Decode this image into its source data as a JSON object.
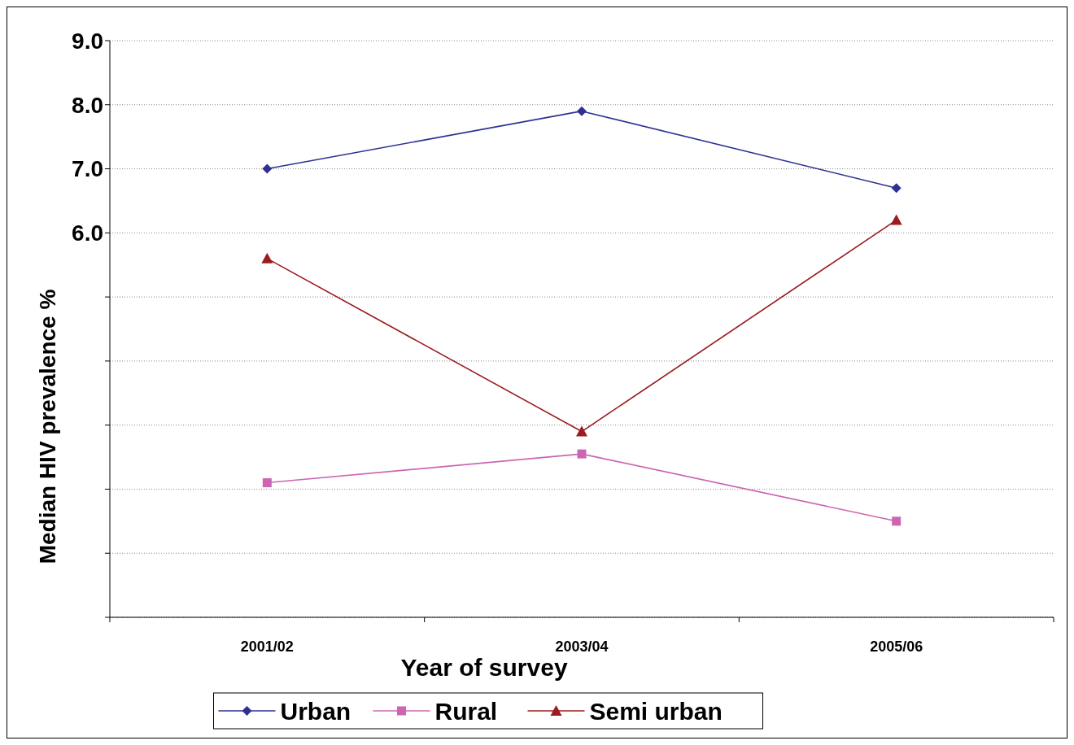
{
  "chart_data": {
    "type": "line",
    "xlabel": "Year of survey",
    "ylabel": "Median HIV prevalence %",
    "categories": [
      "2001/02",
      "2003/04",
      "2005/06"
    ],
    "series": [
      {
        "name": "Urban",
        "color": "#2e3192",
        "marker": "diamond",
        "values": [
          7.0,
          7.9,
          6.7
        ]
      },
      {
        "name": "Rural",
        "color": "#cc66b3",
        "marker": "square",
        "values": [
          2.1,
          2.55,
          1.5
        ]
      },
      {
        "name": "Semi urban",
        "color": "#9b1b1f",
        "marker": "triangle",
        "values": [
          5.6,
          2.9,
          6.2
        ]
      }
    ],
    "ylim": [
      0,
      9
    ],
    "yticks": [
      {
        "value": 0,
        "label": null
      },
      {
        "value": 1,
        "label": null
      },
      {
        "value": 2,
        "label": null
      },
      {
        "value": 3,
        "label": null
      },
      {
        "value": 4,
        "label": null
      },
      {
        "value": 5,
        "label": null
      },
      {
        "value": 6,
        "label": "6.0"
      },
      {
        "value": 7,
        "label": "7.0"
      },
      {
        "value": 8,
        "label": "8.0"
      },
      {
        "value": 9,
        "label": "9.0"
      }
    ],
    "grid": "y",
    "legend": "bottom",
    "line_style": "solid"
  }
}
